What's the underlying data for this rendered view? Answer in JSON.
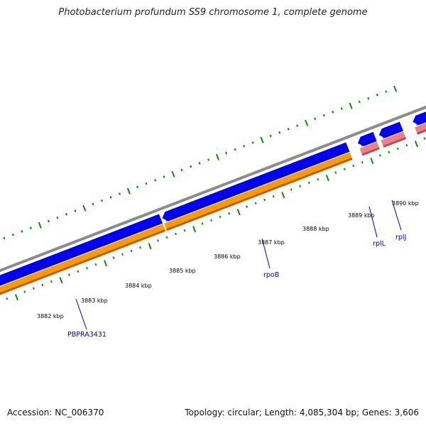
{
  "title": "Photobacterium profundum SS9 chromosome 1, complete genome",
  "footer": {
    "accession": "Accession: NC_006370",
    "summary": "Topology: circular; Length: 4,085,304 bp; Genes: 3,606"
  },
  "colors": {
    "backbone": "#8c8c8c",
    "cds_forward": "#0000ff",
    "cds_forward_dark": "#00008b",
    "gene": "#ff9900",
    "gene_dark": "#b35c00",
    "rna": "#ee7f84",
    "rna_dark": "#b34b50",
    "tick": "#118811",
    "label": "#0000aa"
  },
  "tick_labels": [
    "3882 kbp",
    "3883 kbp",
    "3884 kbp",
    "3885 kbp",
    "3886 kbp",
    "3887 kbp",
    "3888 kbp",
    "3889 kbp",
    "3890 kbp"
  ],
  "gene_labels": [
    "PBPRA3431",
    "rpoB",
    "rplL",
    "rplJ"
  ]
}
